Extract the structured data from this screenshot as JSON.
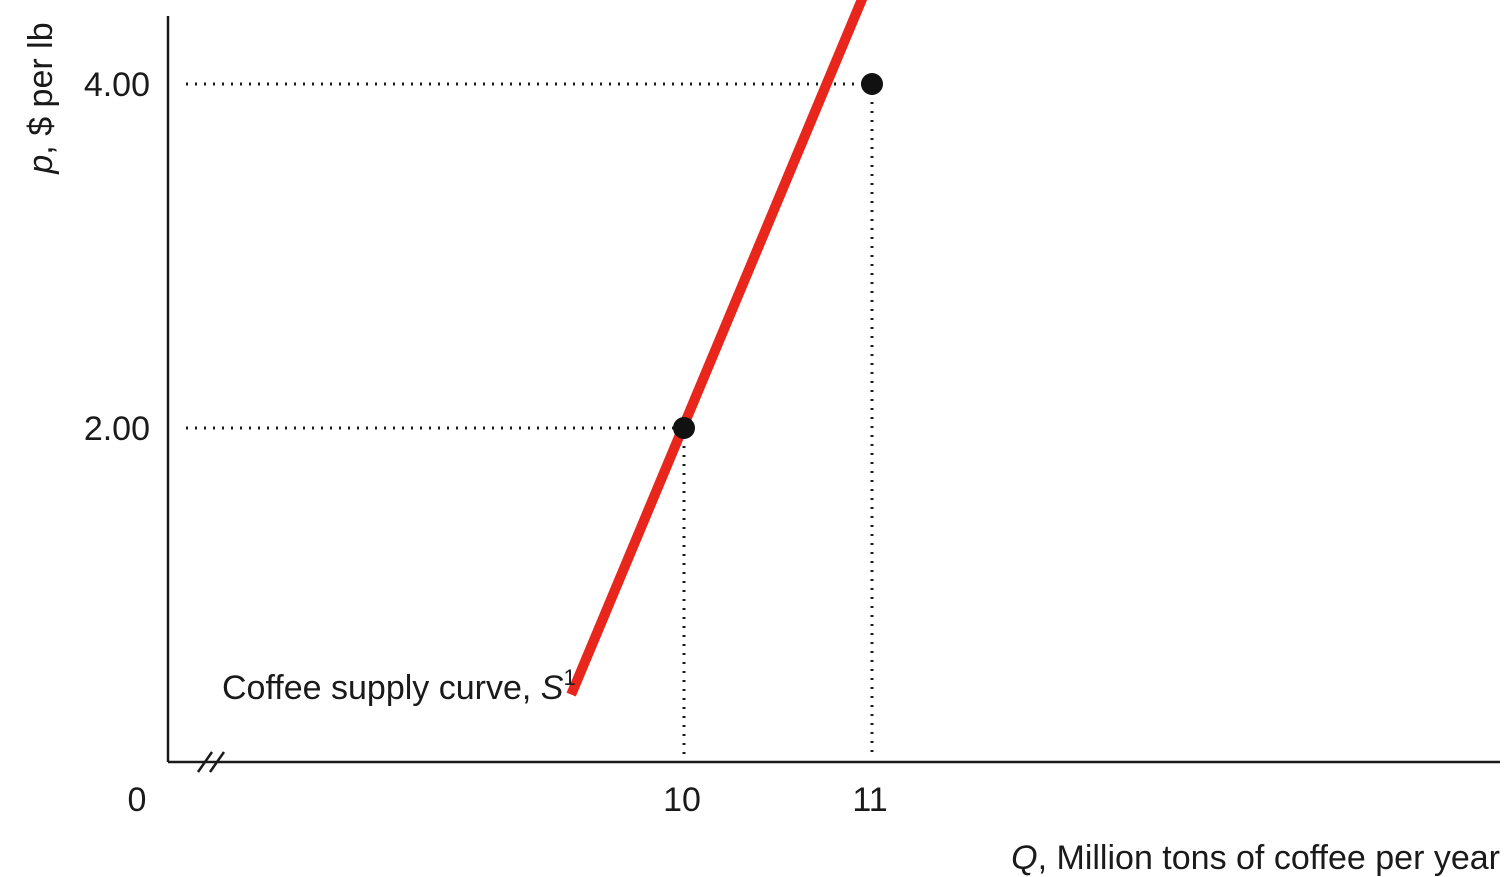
{
  "chart_data": {
    "type": "line",
    "xlabel_var": "Q",
    "xlabel_text": ", Million tons of coffee per year",
    "ylabel_var": "p",
    "ylabel_text": ", $ per lb",
    "x_origin_label": "0",
    "x_axis_break": true,
    "x_ticks": [
      {
        "value": 10,
        "label": "10"
      },
      {
        "value": 11,
        "label": "11"
      }
    ],
    "y_ticks": [
      {
        "value": 2.0,
        "label": "2.00"
      },
      {
        "value": 4.0,
        "label": "4.00"
      }
    ],
    "series": [
      {
        "label_text": "Coffee supply curve, ",
        "label_var": "S",
        "label_sup": "1",
        "color": "#e8261c",
        "x": [
          9.4,
          11.16
        ],
        "y": [
          0.45,
          5.05
        ]
      }
    ],
    "points": [
      {
        "x": 10,
        "y": 2.0
      },
      {
        "x": 11,
        "y": 4.0
      }
    ],
    "grid": false
  }
}
